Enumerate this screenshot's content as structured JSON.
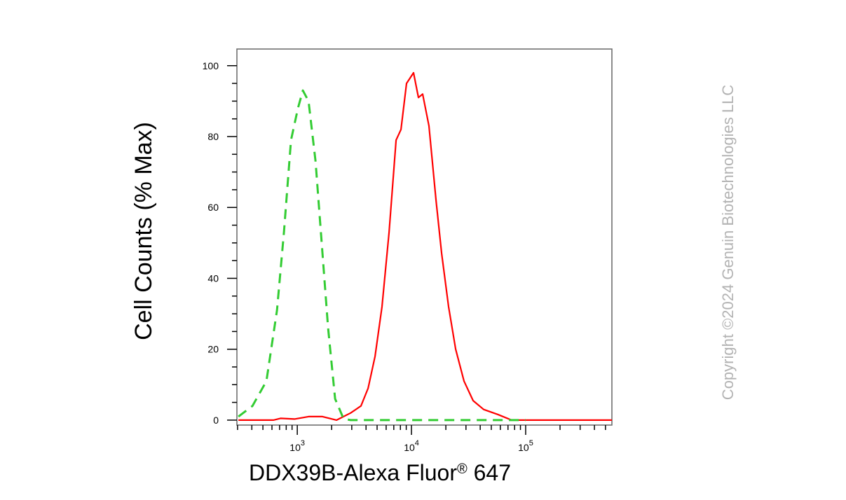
{
  "chart_data": {
    "type": "line",
    "log_x": true,
    "x_label": {
      "text": "DDX39B-Alexa Fluor",
      "sup": "®",
      "tail": " 647"
    },
    "y_label": "Cell Counts (% Max)",
    "copyright": "Copyright ©2024 Genuin Biotechnologies LLC",
    "xlim": [
      296,
      569000
    ],
    "ylim": [
      -1.4,
      104.7
    ],
    "xticks": [
      {
        "value": 1000,
        "label": "10",
        "sup": "3"
      },
      {
        "value": 10000,
        "label": "10",
        "sup": "4"
      },
      {
        "value": 100000,
        "label": "10",
        "sup": "5"
      }
    ],
    "xminorticks": [
      300,
      400,
      500,
      600,
      700,
      800,
      900,
      2000,
      3000,
      4000,
      5000,
      6000,
      7000,
      8000,
      9000,
      20000,
      30000,
      40000,
      50000,
      60000,
      70000,
      80000,
      90000,
      200000,
      300000,
      400000,
      500000
    ],
    "yticks": [
      0,
      20,
      40,
      60,
      80,
      100
    ],
    "yminorticks": [
      5,
      10,
      15,
      25,
      30,
      35,
      45,
      50,
      55,
      65,
      70,
      75,
      85,
      90,
      95
    ],
    "series": [
      {
        "color": "#ff0000",
        "dash": false,
        "x": [
          305,
          618,
          713,
          945,
          1254,
          1663,
          2208,
          2925,
          3614,
          4169,
          4797,
          5521,
          6368,
          7328,
          8091,
          9057,
          10430,
          11510,
          12530,
          14230,
          16400,
          18370,
          21130,
          24380,
          28840,
          34670,
          42850,
          56890,
          75340,
          115100,
          569000
        ],
        "values": [
          0,
          0,
          0.5,
          0.3,
          1,
          1,
          0,
          2,
          4,
          9,
          18,
          32,
          53,
          79,
          82,
          95,
          98,
          91,
          92,
          83,
          62,
          47,
          32,
          20,
          11,
          5.5,
          3,
          1.6,
          0,
          0,
          0
        ]
      },
      {
        "color": "#33cc33",
        "dash": true,
        "x": [
          305,
          405,
          537,
          664,
          764,
          881,
          1014,
          1119,
          1254,
          1445,
          1663,
          1862,
          2143,
          2541,
          2925,
          12020,
          100000
        ],
        "values": [
          1,
          4,
          11,
          31,
          53,
          79,
          88,
          93,
          90,
          73,
          47,
          26,
          6,
          0.4,
          0,
          0,
          0
        ]
      }
    ]
  }
}
